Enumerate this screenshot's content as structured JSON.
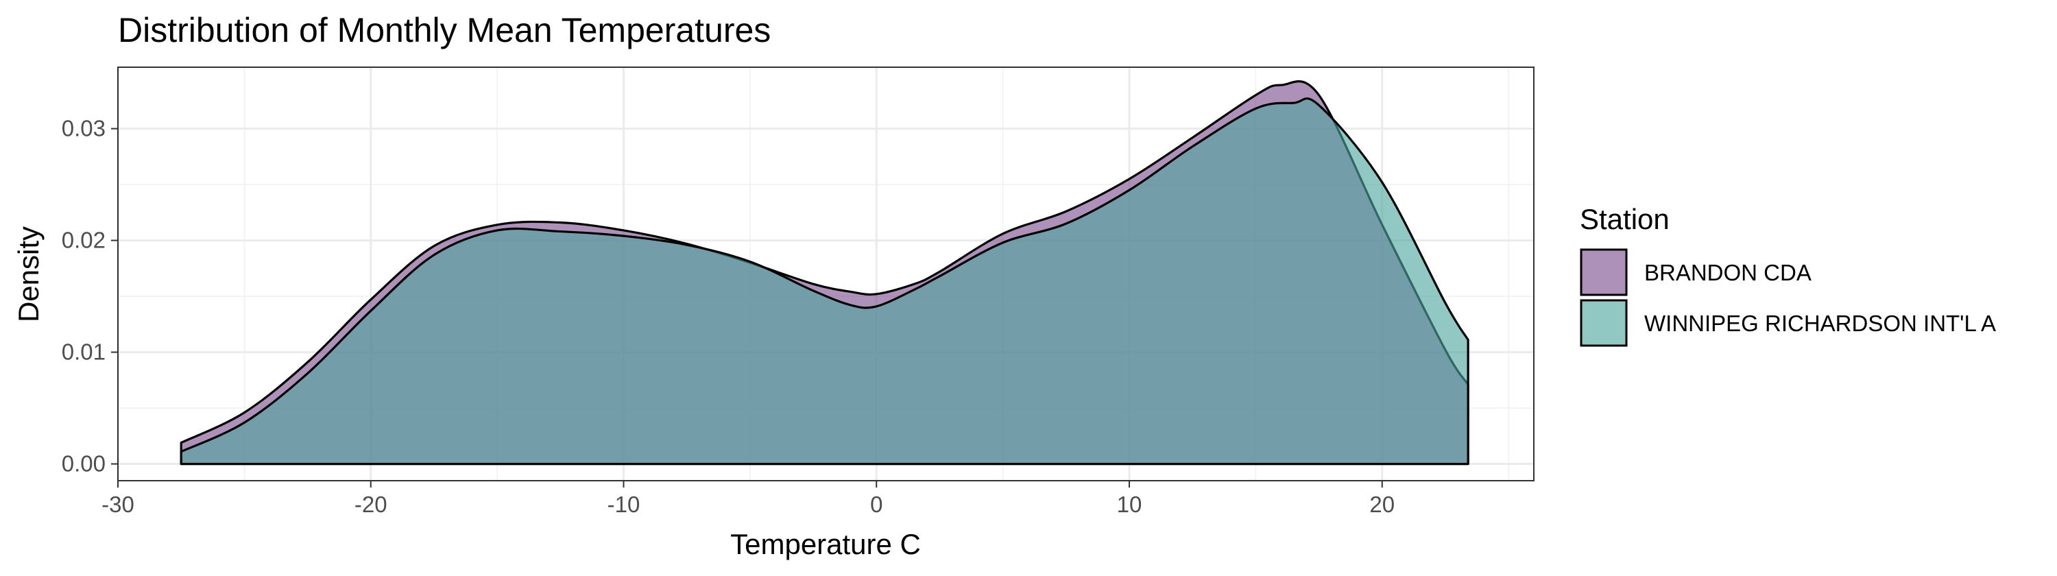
{
  "chart_data": {
    "type": "area",
    "subtype": "density",
    "title": "Distribution of Monthly Mean Temperatures",
    "xlabel": "Temperature C",
    "ylabel": "Density",
    "xlim": [
      -30,
      26
    ],
    "ylim": [
      -0.0015,
      0.0355
    ],
    "x_ticks": [
      -30,
      -20,
      -10,
      0,
      10,
      20
    ],
    "x_tick_labels": [
      "-30",
      "-20",
      "-10",
      "0",
      "10",
      "20"
    ],
    "y_ticks": [
      0,
      0.01,
      0.02,
      0.03
    ],
    "y_tick_labels": [
      "0.00",
      "0.01",
      "0.02",
      "0.03"
    ],
    "grid": true,
    "legend": {
      "title": "Station",
      "position": "right"
    },
    "series": [
      {
        "name": "BRANDON CDA",
        "color": "#7b4d8c",
        "x": [
          -27.5,
          -25,
          -22.5,
          -20,
          -17.5,
          -15,
          -12.5,
          -10,
          -7.5,
          -5,
          -2.5,
          -1,
          0,
          1.5,
          2.5,
          5,
          7.5,
          10,
          12.5,
          15,
          16,
          17.5,
          20,
          22.5,
          23.4
        ],
        "y": [
          0.0019,
          0.0046,
          0.0091,
          0.0147,
          0.0195,
          0.0214,
          0.0216,
          0.0209,
          0.0197,
          0.018,
          0.0161,
          0.0154,
          0.0152,
          0.0161,
          0.0172,
          0.0206,
          0.0226,
          0.0255,
          0.0292,
          0.033,
          0.0339,
          0.033,
          0.0214,
          0.0102,
          0.0071
        ]
      },
      {
        "name": "WINNIPEG RICHARDSON INT'L A",
        "color": "#4fa6a0",
        "x": [
          -27.5,
          -25,
          -22.5,
          -20,
          -17.5,
          -15,
          -12.5,
          -10,
          -7.5,
          -5,
          -2.5,
          -1,
          0,
          1.5,
          2.5,
          5,
          7.5,
          10,
          12.5,
          15,
          16.5,
          17.5,
          20,
          22.5,
          23.4
        ],
        "y": [
          0.0011,
          0.0037,
          0.0081,
          0.0137,
          0.0187,
          0.0209,
          0.0208,
          0.0204,
          0.0196,
          0.0181,
          0.0155,
          0.0142,
          0.0141,
          0.0156,
          0.0168,
          0.0198,
          0.0215,
          0.0245,
          0.0284,
          0.0318,
          0.0323,
          0.0321,
          0.0252,
          0.0144,
          0.0111
        ]
      }
    ]
  }
}
